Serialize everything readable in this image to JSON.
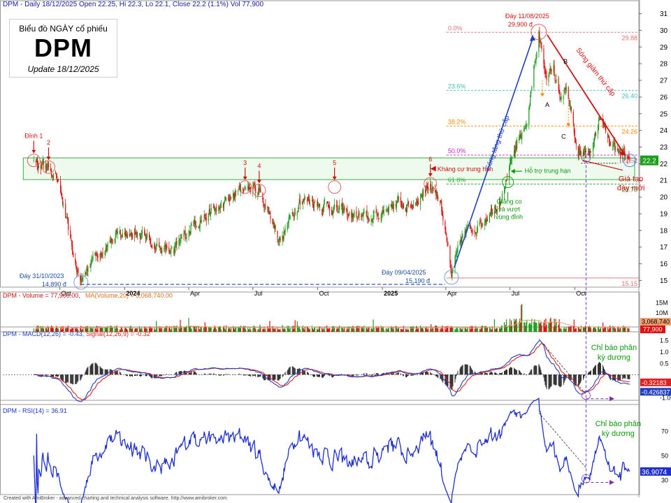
{
  "header": {
    "symbol": "DPM",
    "period": "Daily",
    "date": "18/12/2025",
    "ohlc_text": "DPM - Daily 18/12/2025 Open 22.25, Hi 22.3, Lo 22.1, Close 22.2 (1.1%) Vol 77,900"
  },
  "title_box": {
    "line1": "Biểu đồ NGÀY cổ phiếu",
    "ticker": "DPM",
    "update": "Update 18/12/2025"
  },
  "footer": "Created with AmiBroker - advanced charting and technical analysis software. http://www.amibroker.com",
  "colors": {
    "up": "#1e9e1e",
    "down": "#e01010",
    "blue": "#1f3fbf",
    "red_label": "#d01010",
    "green_label": "#0a9a0a",
    "purple": "#7a2fb0",
    "orange": "#ff8c00",
    "fib": "#e07070",
    "zone": "#d6f5d6"
  },
  "chart_data": [
    {
      "type": "candlestick",
      "panel": "price",
      "y_axis_ticks": [
        15,
        16,
        17,
        18,
        19,
        20,
        21,
        22,
        23,
        24,
        25,
        26,
        27,
        28,
        29,
        30,
        31
      ],
      "ylim": [
        14.6,
        31.4
      ],
      "x_tick_labels": [
        "Oct",
        "2024",
        "Apr",
        "Jul",
        "Oct",
        "2025",
        "Apr",
        "Jul",
        "Oct"
      ],
      "x_tick_dates": [
        "2023-10",
        "2024-01",
        "2024-04",
        "2024-07",
        "2024-10",
        "2025-01",
        "2025-04",
        "2025-07",
        "2025-10"
      ],
      "x_range": [
        "2023-09",
        "2025-12-18"
      ],
      "last_close": 22.2,
      "last_close_label": "22.2",
      "key_points": [
        {
          "date": "2023-08-25",
          "price": 22.2
        },
        {
          "date": "2023-09-01",
          "price": 21.9
        },
        {
          "date": "2023-09-15",
          "price": 21.8
        },
        {
          "date": "2023-09-25",
          "price": 21.4
        },
        {
          "date": "2023-10-05",
          "price": 19.6
        },
        {
          "date": "2023-10-20",
          "price": 16.4
        },
        {
          "date": "2023-10-31",
          "price": 14.89
        },
        {
          "date": "2023-11-15",
          "price": 16.3
        },
        {
          "date": "2023-12-10",
          "price": 17.4
        },
        {
          "date": "2024-01-15",
          "price": 18.0
        },
        {
          "date": "2024-02-20",
          "price": 17.0
        },
        {
          "date": "2024-03-10",
          "price": 16.6
        },
        {
          "date": "2024-04-10",
          "price": 18.6
        },
        {
          "date": "2024-05-15",
          "price": 19.3
        },
        {
          "date": "2024-06-20",
          "price": 20.6
        },
        {
          "date": "2024-07-10",
          "price": 20.4
        },
        {
          "date": "2024-08-10",
          "price": 17.4
        },
        {
          "date": "2024-09-05",
          "price": 19.9
        },
        {
          "date": "2024-10-10",
          "price": 19.6
        },
        {
          "date": "2024-11-05",
          "price": 19.1
        },
        {
          "date": "2024-12-15",
          "price": 18.6
        },
        {
          "date": "2025-01-15",
          "price": 19.6
        },
        {
          "date": "2025-02-10",
          "price": 19.4
        },
        {
          "date": "2025-03-01",
          "price": 20.4
        },
        {
          "date": "2025-03-10",
          "price": 20.8
        },
        {
          "date": "2025-03-25",
          "price": 19.8
        },
        {
          "date": "2025-04-09",
          "price": 15.19
        },
        {
          "date": "2025-04-25",
          "price": 17.7
        },
        {
          "date": "2025-05-20",
          "price": 18.5
        },
        {
          "date": "2025-06-15",
          "price": 19.8
        },
        {
          "date": "2025-06-25",
          "price": 20.9
        },
        {
          "date": "2025-07-10",
          "price": 22.9
        },
        {
          "date": "2025-07-25",
          "price": 24.4
        },
        {
          "date": "2025-08-11",
          "price": 29.9
        },
        {
          "date": "2025-08-22",
          "price": 27.0
        },
        {
          "date": "2025-09-01",
          "price": 27.9
        },
        {
          "date": "2025-09-10",
          "price": 25.8
        },
        {
          "date": "2025-09-20",
          "price": 26.6
        },
        {
          "date": "2025-10-05",
          "price": 22.4
        },
        {
          "date": "2025-10-25",
          "price": 22.7
        },
        {
          "date": "2025-11-05",
          "price": 24.8
        },
        {
          "date": "2025-11-20",
          "price": 23.1
        },
        {
          "date": "2025-12-05",
          "price": 22.3
        },
        {
          "date": "2025-12-18",
          "price": 22.2
        }
      ],
      "fibonacci": [
        {
          "label": "0.0%",
          "price": 29.88,
          "right_label": "29.88",
          "color": "#e07070"
        },
        {
          "label": "23.6%",
          "price": 26.4,
          "right_label": "26.40",
          "color": "#40c0c0"
        },
        {
          "label": "38.2%",
          "price": 24.26,
          "right_label": "24.26",
          "color": "#ff8c00"
        },
        {
          "label": "50.0%",
          "price": 22.52,
          "right_label": "22.52",
          "color": "#d020d0"
        },
        {
          "label": "61.8%",
          "price": 20.78,
          "right_label": "20.78",
          "color": "#20a020"
        },
        {
          "label": "",
          "price": 15.15,
          "right_label": "15.15",
          "color": "#e07070"
        }
      ],
      "zone": {
        "from": 21.4,
        "to": 22.0
      },
      "annotations": {
        "peak_markers": [
          {
            "label": "Đỉnh 1",
            "date": "2023-08-25",
            "price": 22.2
          },
          {
            "label": "2",
            "date": "2023-09-15",
            "price": 21.8
          },
          {
            "label": "3",
            "date": "2024-06-20",
            "price": 20.6
          },
          {
            "label": "4",
            "date": "2024-07-10",
            "price": 20.4
          },
          {
            "label": "5",
            "date": "2024-10-25",
            "price": 20.6
          },
          {
            "label": "6",
            "date": "2025-03-10",
            "price": 20.8
          }
        ],
        "bottom_low_2023": {
          "line1": "Đáy 31/10/2023",
          "line2": "14,890 đ"
        },
        "bottom_low_2025": {
          "line1": "Đáy 09/04/2025",
          "line2": "15,190 đ"
        },
        "top_2025": {
          "line1": "Đáy 11/08/2025",
          "line2": "29,900 đ"
        },
        "resistance": "Kháng cự trung hạn",
        "support": "Hỗ trợ trung hạn",
        "accumulation": {
          "line1": "Giằng co",
          "line2": "và vượt",
          "line3": "vùng đỉnh"
        },
        "wave_up": "Sóng tăng thứ cấp",
        "wave_down": "Sóng giảm thứ cấp",
        "point_a": "A",
        "point_b": "B",
        "point_c": "C",
        "new_bottom": {
          "line1": "Giá tạo",
          "line2": "đáy mới"
        }
      }
    },
    {
      "type": "bar",
      "panel": "volume",
      "legend": "DPM - Volume = 77,900.00,  MA(Volume,20) = 3,068,740.00",
      "axis_ticks": [
        "15M",
        "10M"
      ],
      "ma_label": "3,068,740",
      "last_label": "77,900",
      "ma_value": 3068740,
      "last_value": 77900,
      "ylim": [
        0,
        17000000
      ]
    },
    {
      "type": "line",
      "panel": "macd",
      "legend_macd": "DPM - MACD(12,26) = -0.43,",
      "legend_signal": " Signal(12,26,9) = -0.32",
      "axis_ticks": [
        1.5,
        1.0,
        0.5,
        -1.0
      ],
      "ylim": [
        -1.3,
        1.8
      ],
      "macd_last": -0.426837,
      "signal_last": -0.32183,
      "macd_last_label": "-0.426837",
      "signal_last_label": "-0.32183",
      "divergence_label": {
        "line1": "Chỉ báo phân",
        "line2": "kỳ dương"
      }
    },
    {
      "type": "line",
      "panel": "rsi",
      "legend": "DPM - RSI(14) = 36.91",
      "axis_ticks": [
        70,
        50,
        30
      ],
      "ylim": [
        18,
        90
      ],
      "last_label": "36.9074",
      "last_value": 36.9074,
      "divergence_label": {
        "line1": "Chỉ báo phân",
        "line2": "kỳ dương"
      }
    }
  ]
}
